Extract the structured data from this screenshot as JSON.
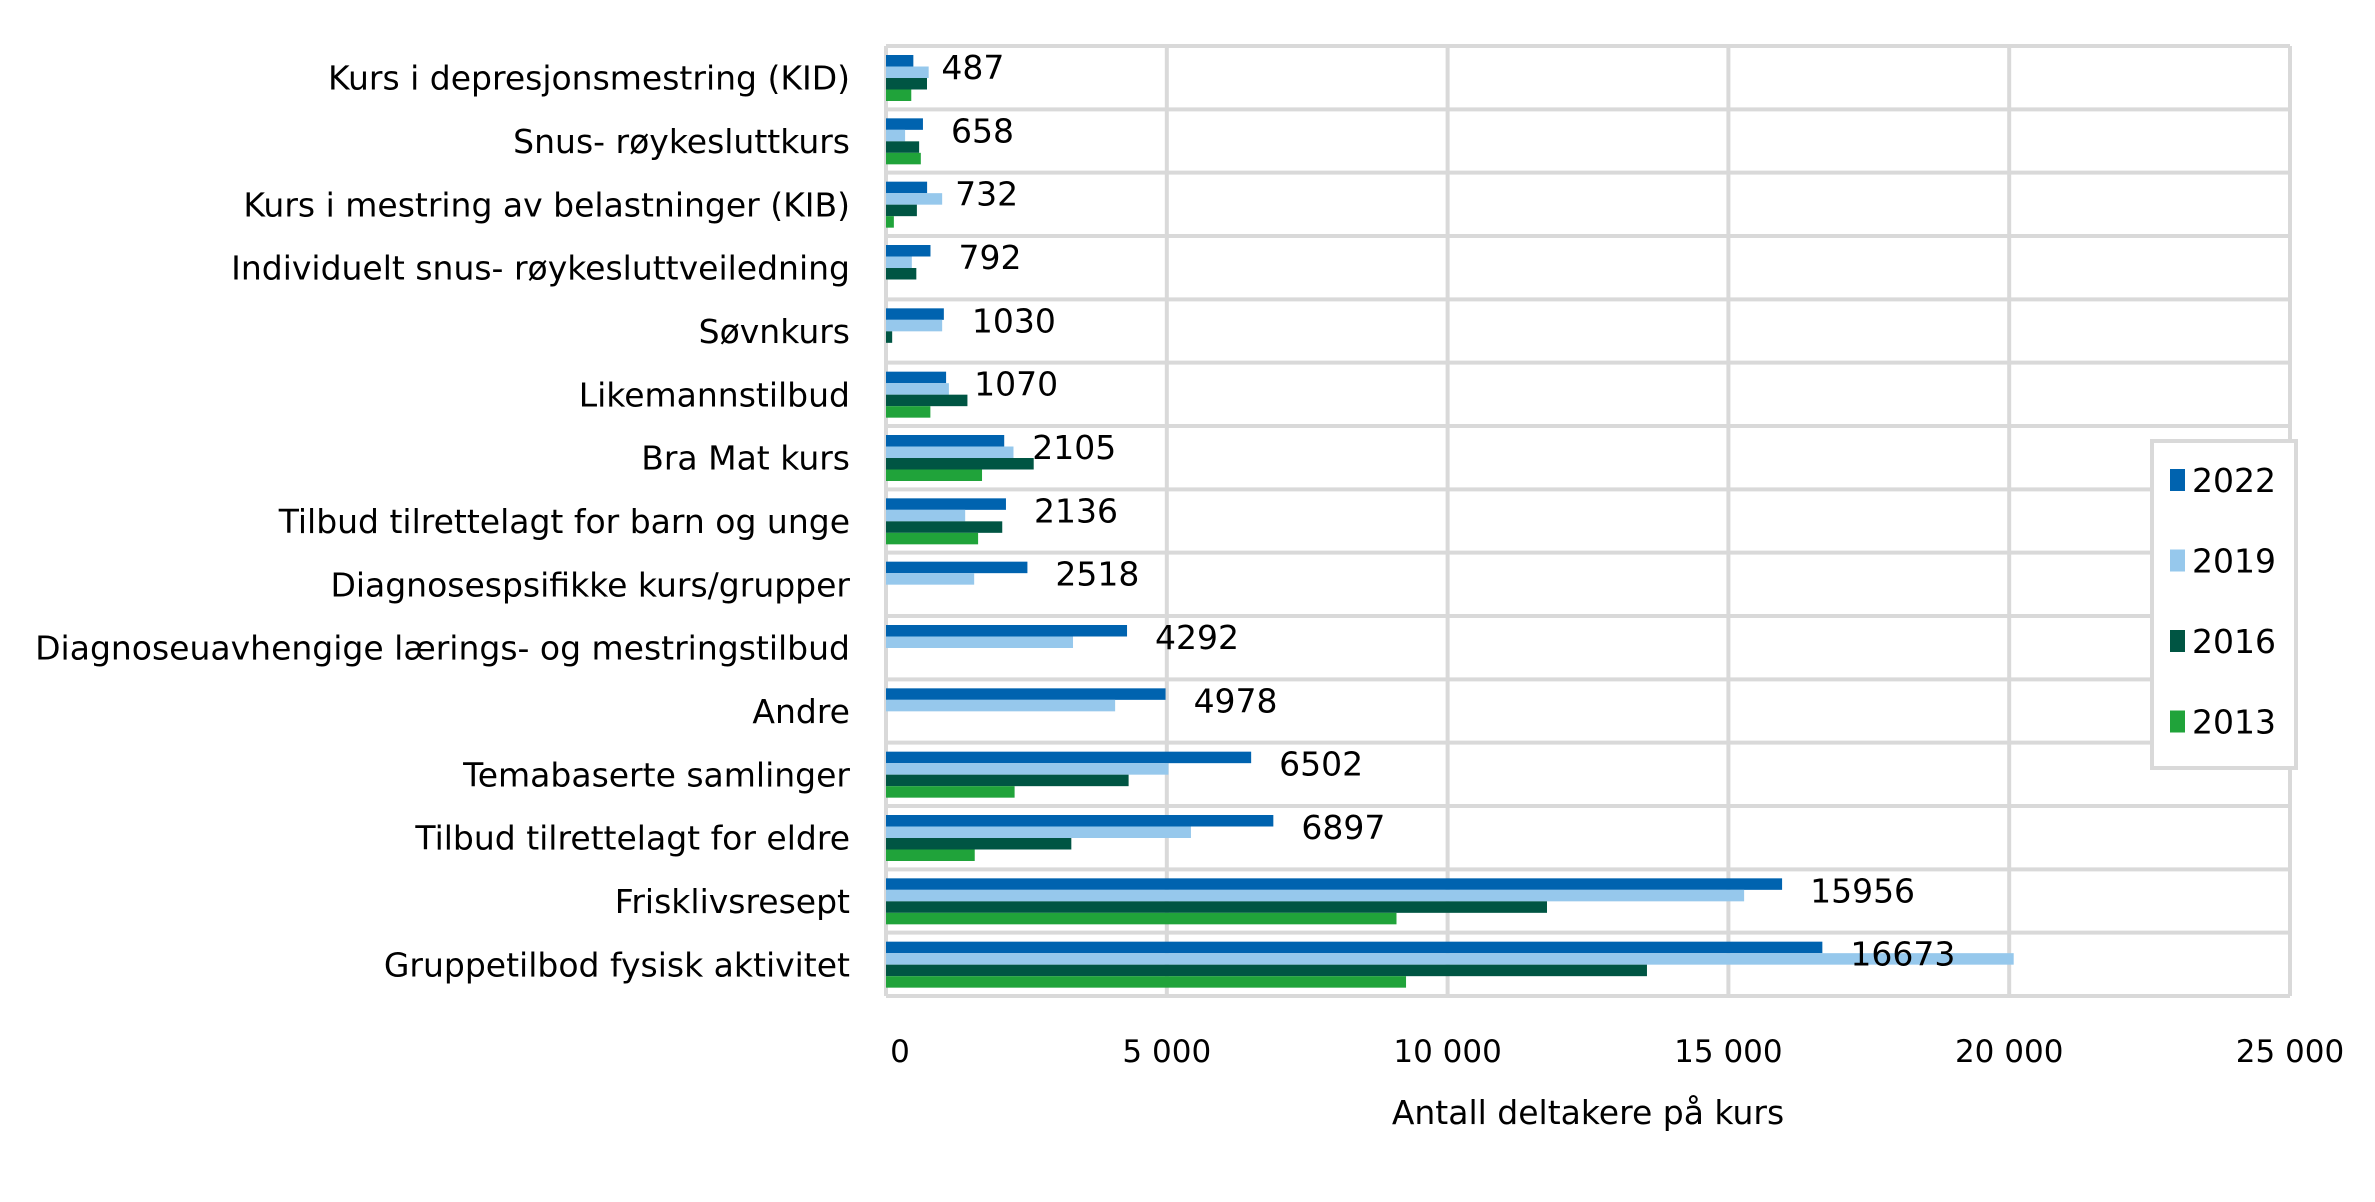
{
  "chart_data": {
    "type": "bar",
    "orientation": "horizontal",
    "title": "",
    "xlabel": "Antall deltakere på kurs",
    "ylabel": "",
    "xlim": [
      0,
      25000
    ],
    "xticks": [
      0,
      5000,
      10000,
      15000,
      20000,
      25000
    ],
    "xtick_labels": [
      "0",
      "5 000",
      "10 000",
      "15 000",
      "20 000",
      "25 000"
    ],
    "grid": true,
    "legend_position": "right",
    "categories": [
      "Kurs i depresjonsmestring (KID)",
      "Snus- røykesluttkurs",
      "Kurs i mestring av belastninger (KIB)",
      "Individuelt snus- røykesluttveiledning",
      "Søvnkurs",
      "Likemannstilbud",
      "Bra Mat kurs",
      "Tilbud tilrettelagt for barn og unge",
      "Diagnosespsifikke kurs/grupper",
      "Diagnoseuavhengige lærings- og mestringstilbud",
      "Andre",
      "Temabaserte samlinger",
      "Tilbud tilrettelagt for eldre",
      "Frisklivsresept",
      "Gruppetilbod fysisk aktivitet"
    ],
    "series": [
      {
        "name": "2022",
        "color": "#0063AF",
        "values": [
          487,
          658,
          732,
          792,
          1030,
          1070,
          2105,
          2136,
          2518,
          4292,
          4978,
          6502,
          6897,
          15956,
          16673
        ]
      },
      {
        "name": "2019",
        "color": "#96C8EC",
        "values": [
          760,
          340,
          1000,
          460,
          1000,
          1120,
          2270,
          1410,
          1570,
          3330,
          4080,
          5030,
          5430,
          15280,
          20080
        ]
      },
      {
        "name": "2016",
        "color": "#005543",
        "values": [
          730,
          590,
          550,
          540,
          110,
          1450,
          2630,
          2070,
          null,
          null,
          null,
          4320,
          3300,
          11770,
          13550
        ]
      },
      {
        "name": "2013",
        "color": "#20A33A",
        "values": [
          450,
          620,
          140,
          null,
          null,
          790,
          1710,
          1640,
          null,
          null,
          null,
          2290,
          1580,
          9090,
          9260
        ]
      }
    ],
    "data_labels": [
      "487",
      "658",
      "732",
      "792",
      "1030",
      "1070",
      "2105",
      "2136",
      "2518",
      "4292",
      "4978",
      "6502",
      "6897",
      "15956",
      "16673"
    ]
  }
}
